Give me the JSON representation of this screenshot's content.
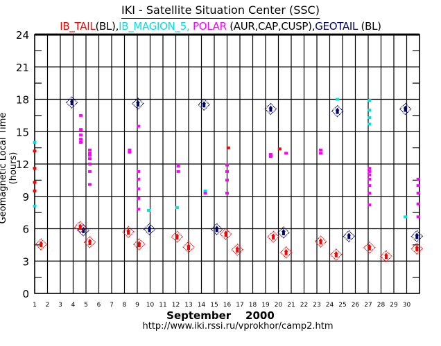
{
  "chart_data": {
    "type": "scatter",
    "title": "IKI - Satellite Situation Center (SSC)",
    "legend": [
      {
        "name": "IB_TAIL",
        "suffix": "(BL),",
        "color": "#ff0000"
      },
      {
        "name": "IB_MAGION_5,",
        "suffix": "",
        "color": "#00e0e0"
      },
      {
        "name": "POLAR",
        "suffix": "(AUR,CAP,CUSP),",
        "color": "#ff00ff"
      },
      {
        "name": "GEOTAIL",
        "suffix": "(BL)",
        "color": "#000066"
      }
    ],
    "xlabel": "September    2000",
    "ylabel": "Geomagnetic Local Time (hours)",
    "xlim": [
      1,
      31
    ],
    "ylim": [
      0,
      24
    ],
    "x_ticks": [
      "1",
      "2",
      "3",
      "4",
      "5",
      "6",
      "7",
      "8",
      "9",
      "10",
      "11",
      "12",
      "13",
      "14",
      "15",
      "16",
      "17",
      "18",
      "19",
      "20",
      "21",
      "22",
      "23",
      "24",
      "25",
      "26",
      "27",
      "28",
      "29",
      "30"
    ],
    "y_ticks": [
      "0",
      "3",
      "6",
      "9",
      "12",
      "15",
      "18",
      "21",
      "24"
    ],
    "grid": true,
    "footer": "http://www.iki.rssi.ru/vprokhor/camp2.htm",
    "series": [
      {
        "name": "GEOTAIL",
        "marker": "diamond",
        "color": "#000066",
        "points": [
          [
            3.9,
            17.7
          ],
          [
            4.8,
            5.85
          ],
          [
            9.05,
            17.6
          ],
          [
            9.95,
            5.95
          ],
          [
            14.2,
            17.5
          ],
          [
            15.2,
            5.95
          ],
          [
            19.4,
            17.1
          ],
          [
            20.4,
            5.65
          ],
          [
            24.6,
            16.9
          ],
          [
            25.5,
            5.3
          ],
          [
            29.9,
            17.1
          ],
          [
            30.8,
            5.3
          ]
        ]
      },
      {
        "name": "IB_TAIL (BL)",
        "marker": "diamond",
        "color": "#ff0000",
        "points": [
          [
            1.5,
            4.55
          ],
          [
            4.55,
            6.15
          ],
          [
            5.3,
            4.75
          ],
          [
            8.3,
            5.7
          ],
          [
            9.15,
            4.55
          ],
          [
            12.1,
            5.25
          ],
          [
            13.0,
            4.3
          ],
          [
            15.9,
            5.5
          ],
          [
            16.8,
            4.05
          ],
          [
            19.6,
            5.25
          ],
          [
            20.6,
            3.8
          ],
          [
            23.3,
            4.8
          ],
          [
            24.5,
            3.6
          ],
          [
            27.1,
            4.25
          ],
          [
            28.4,
            3.45
          ],
          [
            30.8,
            4.15
          ]
        ]
      },
      {
        "name": "IB_TAIL",
        "marker": "dot",
        "color": "#ff0000",
        "points": [
          [
            1.0,
            13.2
          ],
          [
            1.0,
            11.6
          ],
          [
            1.0,
            10.3
          ],
          [
            1.0,
            9.5
          ],
          [
            16.1,
            13.5
          ],
          [
            20.1,
            13.4
          ]
        ]
      },
      {
        "name": "IB_MAGION_5",
        "marker": "dot",
        "color": "#00e0e0",
        "points": [
          [
            1.0,
            14.0
          ],
          [
            1.0,
            8.1
          ],
          [
            9.9,
            7.7
          ],
          [
            12.1,
            7.95
          ],
          [
            14.3,
            9.5
          ],
          [
            24.6,
            18.0
          ],
          [
            27.1,
            17.9
          ],
          [
            27.1,
            17.0
          ],
          [
            27.1,
            16.3
          ],
          [
            27.1,
            15.7
          ],
          [
            29.9,
            7.1
          ]
        ]
      },
      {
        "name": "POLAR",
        "marker": "dot",
        "color": "#ff00ff",
        "points": [
          [
            4.6,
            16.5
          ],
          [
            4.6,
            15.2
          ],
          [
            4.6,
            14.7
          ],
          [
            4.6,
            14.3
          ],
          [
            4.6,
            14.0
          ],
          [
            5.3,
            13.3
          ],
          [
            5.3,
            13.0
          ],
          [
            5.3,
            12.8
          ],
          [
            5.3,
            12.5
          ],
          [
            5.3,
            12.0
          ],
          [
            5.3,
            11.3
          ],
          [
            5.3,
            10.1
          ],
          [
            8.4,
            13.3
          ],
          [
            8.4,
            13.1
          ],
          [
            9.1,
            15.5
          ],
          [
            9.1,
            11.3
          ],
          [
            9.1,
            10.6
          ],
          [
            9.1,
            9.7
          ],
          [
            9.1,
            8.8
          ],
          [
            9.1,
            7.8
          ],
          [
            12.2,
            11.8
          ],
          [
            12.2,
            11.3
          ],
          [
            14.3,
            9.3
          ],
          [
            16.0,
            11.9
          ],
          [
            16.0,
            11.3
          ],
          [
            16.0,
            10.5
          ],
          [
            16.0,
            9.3
          ],
          [
            19.4,
            12.9
          ],
          [
            19.4,
            12.7
          ],
          [
            20.6,
            13.0
          ],
          [
            23.3,
            13.3
          ],
          [
            23.3,
            13.0
          ],
          [
            27.1,
            11.6
          ],
          [
            27.1,
            11.3
          ],
          [
            27.1,
            11.0
          ],
          [
            27.1,
            10.6
          ],
          [
            27.1,
            10.0
          ],
          [
            27.1,
            9.3
          ],
          [
            27.1,
            8.2
          ],
          [
            30.9,
            10.6
          ],
          [
            30.9,
            10.0
          ],
          [
            30.9,
            9.3
          ],
          [
            30.9,
            8.3
          ],
          [
            30.9,
            7.1
          ]
        ]
      }
    ]
  }
}
